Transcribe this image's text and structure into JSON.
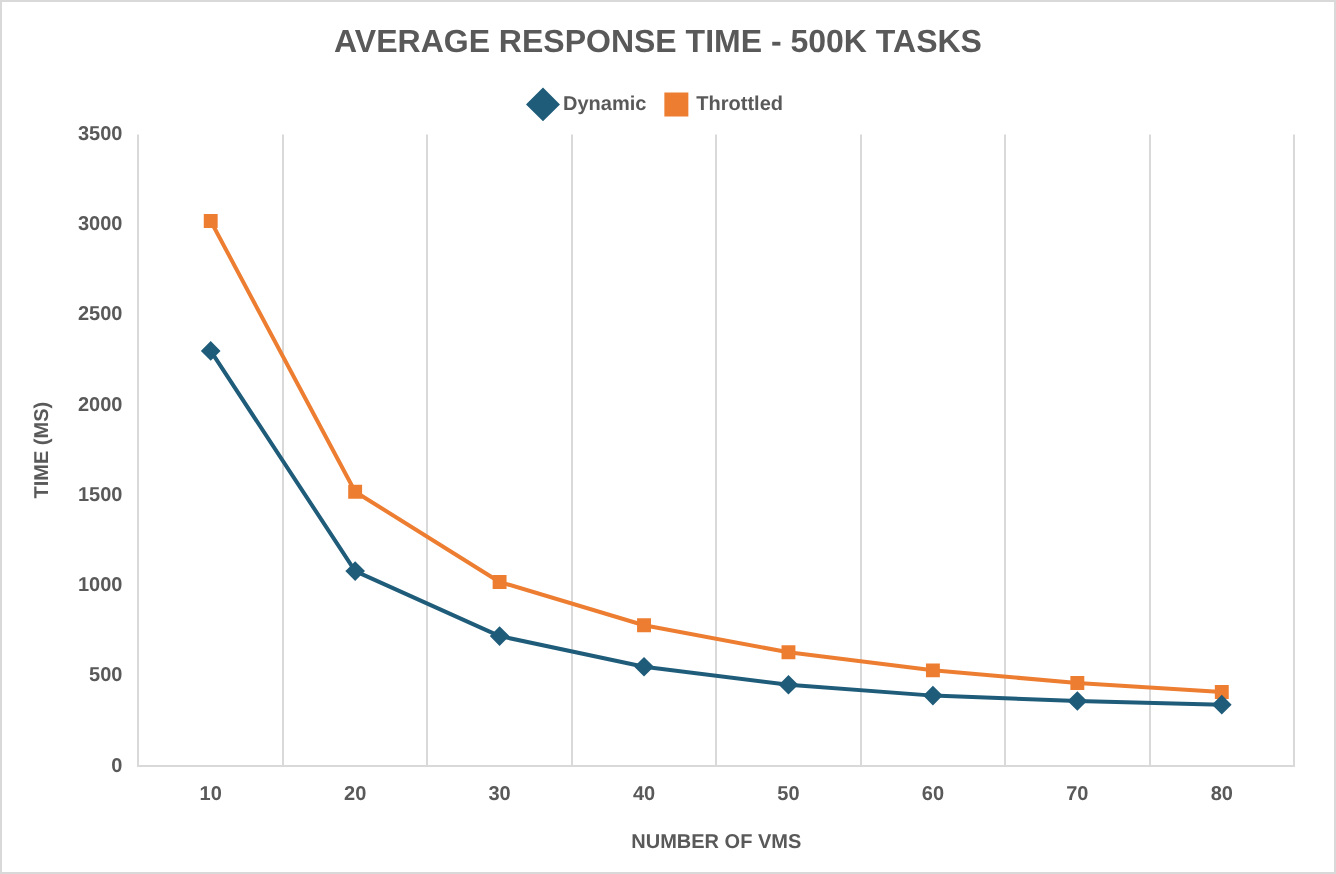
{
  "chart_data": {
    "type": "line",
    "title": "AVERAGE RESPONSE TIME - 500K TASKS",
    "xlabel": "NUMBER OF VMS",
    "ylabel": "TIME (MS)",
    "categories": [
      "10",
      "20",
      "30",
      "40",
      "50",
      "60",
      "70",
      "80"
    ],
    "series": [
      {
        "name": "Dynamic",
        "color": "#1f5c7a",
        "marker": "diamond",
        "values": [
          2300,
          1080,
          720,
          550,
          450,
          390,
          360,
          340
        ]
      },
      {
        "name": "Throttled",
        "color": "#ed7d31",
        "marker": "square",
        "values": [
          3020,
          1520,
          1020,
          780,
          630,
          530,
          460,
          410
        ]
      }
    ],
    "ylim": [
      0,
      3500
    ],
    "yticks": [
      0,
      500,
      1000,
      1500,
      2000,
      2500,
      3000,
      3500
    ],
    "grid": "x",
    "legend": "top",
    "line_style": "solid"
  }
}
